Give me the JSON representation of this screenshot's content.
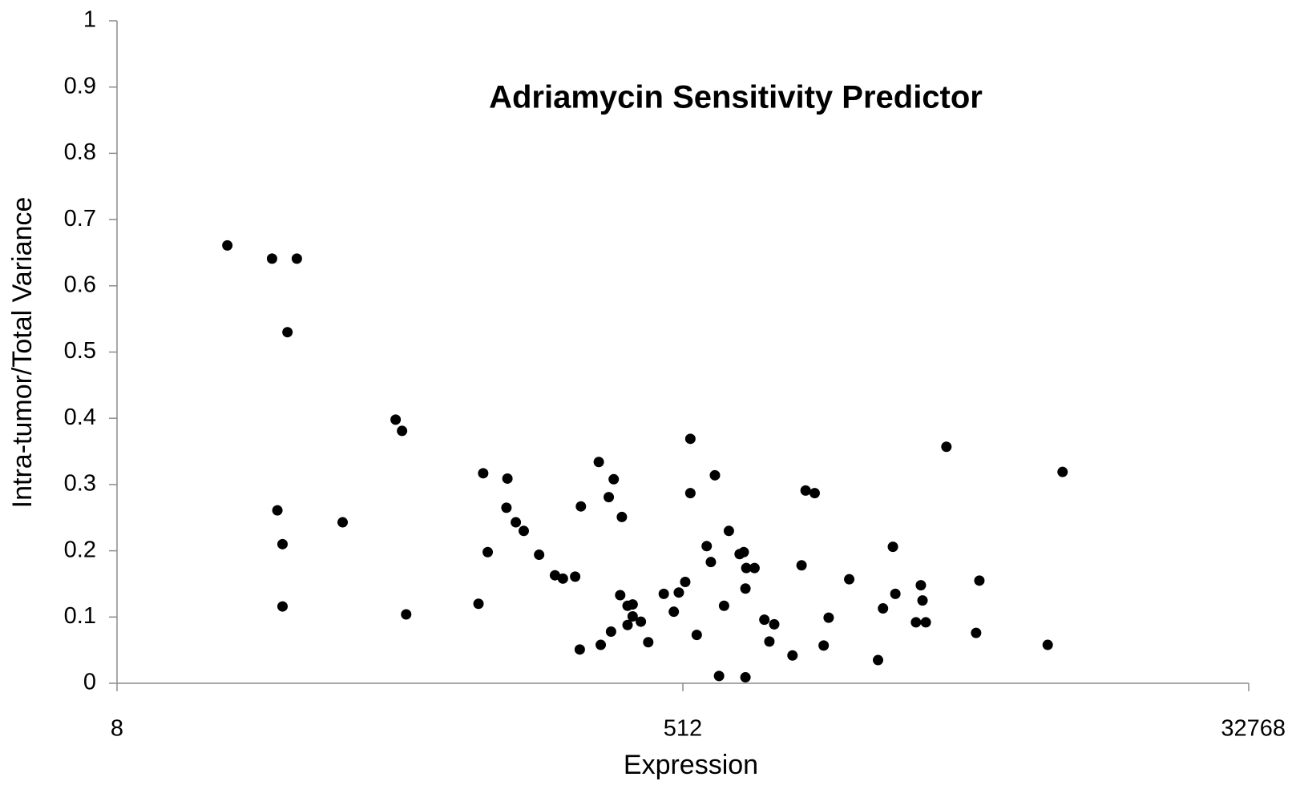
{
  "chart_data": {
    "type": "scatter",
    "title": "Adriamycin Sensitivity Predictor",
    "x_label": "Expression",
    "y_label": "Intra-tumor/Total Variance",
    "x": [
      18,
      25,
      30,
      28,
      26,
      27,
      27,
      42,
      62,
      65,
      67,
      114,
      118,
      122,
      141,
      140,
      150,
      159,
      178,
      200,
      212,
      232,
      242,
      240,
      276,
      280,
      297,
      308,
      302,
      327,
      323,
      341,
      354,
      341,
      354,
      376,
      397,
      445,
      479,
      497,
      521,
      541,
      541,
      567,
      610,
      629,
      648,
      668,
      693,
      718,
      777,
      801,
      811,
      816,
      867,
      811,
      932,
      1002,
      967,
      1146,
      1225,
      1262,
      1349,
      1441,
      1495,
      1739,
      2149,
      2229,
      2397,
      2441,
      2840,
      3053,
      2944,
      2980,
      3552,
      4418,
      4526,
      7479,
      8342
    ],
    "y": [
      0.661,
      0.641,
      0.641,
      0.53,
      0.261,
      0.21,
      0.116,
      0.243,
      0.398,
      0.381,
      0.104,
      0.12,
      0.317,
      0.198,
      0.309,
      0.265,
      0.243,
      0.23,
      0.194,
      0.163,
      0.158,
      0.161,
      0.267,
      0.051,
      0.334,
      0.058,
      0.281,
      0.308,
      0.078,
      0.251,
      0.133,
      0.117,
      0.119,
      0.088,
      0.101,
      0.093,
      0.062,
      0.135,
      0.108,
      0.137,
      0.153,
      0.369,
      0.287,
      0.073,
      0.207,
      0.183,
      0.314,
      0.011,
      0.117,
      0.23,
      0.195,
      0.198,
      0.143,
      0.174,
      0.174,
      0.009,
      0.096,
      0.089,
      0.063,
      0.042,
      0.178,
      0.291,
      0.287,
      0.057,
      0.099,
      0.157,
      0.035,
      0.113,
      0.206,
      0.135,
      0.092,
      0.092,
      0.148,
      0.125,
      0.357,
      0.076,
      0.155,
      0.058,
      0.319
    ],
    "color": "#000000",
    "xlim": [
      8,
      32768
    ],
    "xticks": [
      8,
      512,
      32768
    ],
    "xscale": "log2",
    "ylim": [
      0,
      1
    ],
    "yticks": [
      0,
      0.1,
      0.2,
      0.3,
      0.4,
      0.5,
      0.6,
      0.7,
      0.8,
      0.9,
      1
    ],
    "grid": false
  }
}
